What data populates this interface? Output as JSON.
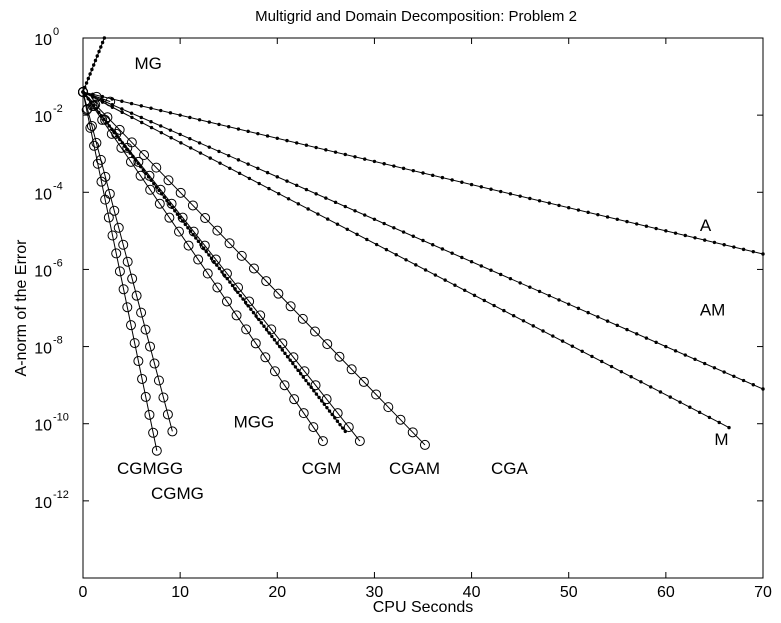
{
  "chart_data": {
    "type": "line",
    "title": "Multigrid and Domain Decomposition:  Problem 2",
    "xlabel": "CPU Seconds",
    "ylabel": "A-norm of the Error",
    "xlim": [
      0,
      70
    ],
    "ylim_log10": [
      -14,
      0
    ],
    "yscale": "log",
    "grid": false,
    "legend": "none (inline series labels)",
    "x_ticks": [
      "0",
      "10",
      "20",
      "30",
      "40",
      "50",
      "60",
      "70"
    ],
    "y_ticks": [
      {
        "base": "10",
        "exp": "0",
        "log10": 0
      },
      {
        "base": "10",
        "exp": "-2",
        "log10": -2
      },
      {
        "base": "10",
        "exp": "-4",
        "log10": -4
      },
      {
        "base": "10",
        "exp": "-6",
        "log10": -6
      },
      {
        "base": "10",
        "exp": "-8",
        "log10": -8
      },
      {
        "base": "10",
        "exp": "-10",
        "log10": -10
      },
      {
        "base": "10",
        "exp": "-12",
        "log10": -12
      }
    ],
    "series": [
      {
        "name": "MG",
        "marker": "dot",
        "x": [
          0,
          2.2
        ],
        "log10_y": [
          -1.4,
          0.0
        ],
        "points": 12
      },
      {
        "name": "A",
        "marker": "dot",
        "x": [
          0,
          70
        ],
        "log10_y": [
          -1.4,
          -5.6
        ],
        "points": 70
      },
      {
        "name": "AM",
        "marker": "dot",
        "x": [
          0,
          70
        ],
        "log10_y": [
          -1.4,
          -9.1
        ],
        "points": 70
      },
      {
        "name": "M",
        "marker": "dot",
        "x": [
          0,
          66.5
        ],
        "log10_y": [
          -1.4,
          -10.1
        ],
        "points": 66
      },
      {
        "name": "MGG",
        "marker": "dot",
        "x": [
          0,
          27
        ],
        "log10_y": [
          -1.4,
          -10.2
        ],
        "points": 100
      },
      {
        "name": "CGA",
        "marker": "circle",
        "x": [
          0,
          2.8
        ],
        "log10_y": [
          -1.4,
          -1.65
        ],
        "points": 2
      },
      {
        "name": "CGAM",
        "marker": "circle",
        "x": [
          0,
          35.2
        ],
        "log10_y": [
          -1.4,
          -10.55
        ],
        "points": 28
      },
      {
        "name": "CGM",
        "marker": "circle",
        "x": [
          0,
          28.5
        ],
        "log10_y": [
          -1.4,
          -10.45
        ],
        "points": 25
      },
      {
        "name": "CGM",
        "marker": "circle",
        "x": [
          0,
          24.7
        ],
        "log10_y": [
          -1.4,
          -10.45
        ],
        "points": 25
      },
      {
        "name": "CGMG",
        "marker": "circle",
        "x": [
          0,
          9.2
        ],
        "log10_y": [
          -1.4,
          -10.2
        ],
        "points": 20
      },
      {
        "name": "CGMGG",
        "marker": "circle",
        "x": [
          0,
          7.6
        ],
        "log10_y": [
          -1.4,
          -10.7
        ],
        "points": 20
      }
    ],
    "labels": [
      {
        "text": "MG",
        "x": 5.3,
        "log10_y": -0.8
      },
      {
        "text": "A",
        "x": 63.5,
        "log10_y": -5.0
      },
      {
        "text": "AM",
        "x": 63.5,
        "log10_y": -7.2
      },
      {
        "text": "M",
        "x": 65.0,
        "log10_y": -10.55
      },
      {
        "text": "MGG",
        "x": 15.5,
        "log10_y": -10.1
      },
      {
        "text": "CGMGG",
        "x": 3.5,
        "log10_y": -11.3
      },
      {
        "text": "CGMG",
        "x": 7.0,
        "log10_y": -11.95
      },
      {
        "text": "CGM",
        "x": 22.5,
        "log10_y": -11.3
      },
      {
        "text": "CGAM",
        "x": 31.5,
        "log10_y": -11.3
      },
      {
        "text": "CGA",
        "x": 42.0,
        "log10_y": -11.3
      }
    ]
  }
}
